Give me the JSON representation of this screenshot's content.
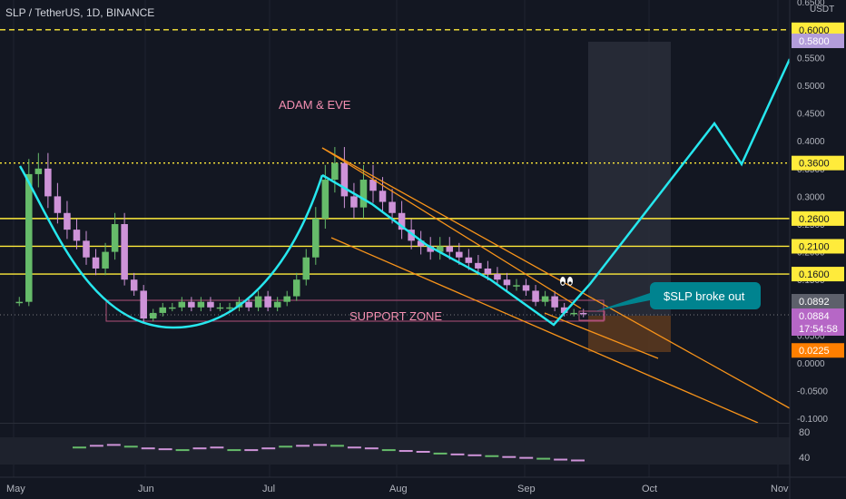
{
  "header": {
    "symbol_line": "SLP / TetherUS, 1D, BINANCE"
  },
  "chart_data": {
    "type": "candlestick",
    "title": "SLP / TetherUS, 1D, BINANCE",
    "currency_label": "USDT",
    "price_axis_ticks": [
      "0.6500",
      "0.5500",
      "0.5000",
      "0.4500",
      "0.4000",
      "0.3500",
      "0.3000",
      "0.2500",
      "0.2000",
      "0.1500",
      "0.1000",
      "0.0500",
      "0.0000",
      "-0.0500",
      "-0.1000"
    ],
    "price_axis_values": [
      0.65,
      0.55,
      0.5,
      0.45,
      0.4,
      0.35,
      0.3,
      0.25,
      0.2,
      0.15,
      0.1,
      0.05,
      0.0,
      -0.05,
      -0.1
    ],
    "time_axis_ticks": [
      "May",
      "Jun",
      "Jul",
      "Aug",
      "Sep",
      "Oct",
      "Nov"
    ],
    "ylim": [
      -0.1,
      0.65
    ],
    "horizontal_levels": [
      {
        "label": "0.6000",
        "value": 0.6,
        "style": "dashed",
        "color": "#ffeb3b"
      },
      {
        "label": "0.3600",
        "value": 0.36,
        "style": "dotted",
        "color": "#ffeb3b"
      },
      {
        "label": "0.2600",
        "value": 0.26,
        "style": "solid",
        "color": "#ffeb3b"
      },
      {
        "label": "0.2100",
        "value": 0.21,
        "style": "solid",
        "color": "#ffeb3b"
      },
      {
        "label": "0.1600",
        "value": 0.16,
        "style": "solid",
        "color": "#ffeb3b"
      }
    ],
    "price_tags": [
      {
        "label": "0.5800",
        "value": 0.58,
        "color": "#b39ddb"
      },
      {
        "label": "0.0892",
        "value": 0.0892,
        "color": "#5d606b"
      },
      {
        "label": "0.0884",
        "value": 0.0884,
        "color": "#b667c6"
      },
      {
        "label": "17:54:58",
        "value": 0.07,
        "color": "#b667c6"
      },
      {
        "label": "0.0225",
        "value": 0.0225,
        "color": "#ff7f00"
      }
    ],
    "annotations": [
      {
        "text": "ADAM & EVE",
        "color": "#f48fb1"
      },
      {
        "text": "SUPPORT ZONE",
        "color": "#f48fb1"
      },
      {
        "text": "$SLP broke out",
        "color": "#ffffff",
        "background": "#00838f"
      }
    ],
    "volume_panel_ticks": [
      "80",
      "40"
    ],
    "candles": [
      {
        "close": 0.11
      },
      {
        "close": 0.34
      },
      {
        "close": 0.35
      },
      {
        "close": 0.3
      },
      {
        "close": 0.27
      },
      {
        "close": 0.24
      },
      {
        "close": 0.22
      },
      {
        "close": 0.19
      },
      {
        "close": 0.17
      },
      {
        "close": 0.2
      },
      {
        "close": 0.25
      },
      {
        "close": 0.15
      },
      {
        "close": 0.13
      },
      {
        "close": 0.08
      },
      {
        "close": 0.09
      },
      {
        "close": 0.1
      },
      {
        "close": 0.1
      },
      {
        "close": 0.11
      },
      {
        "close": 0.1
      },
      {
        "close": 0.11
      },
      {
        "close": 0.1
      },
      {
        "close": 0.1
      },
      {
        "close": 0.1
      },
      {
        "close": 0.11
      },
      {
        "close": 0.1
      },
      {
        "close": 0.12
      },
      {
        "close": 0.1
      },
      {
        "close": 0.11
      },
      {
        "close": 0.12
      },
      {
        "close": 0.15
      },
      {
        "close": 0.19
      },
      {
        "close": 0.26
      },
      {
        "close": 0.33
      },
      {
        "close": 0.36
      },
      {
        "close": 0.3
      },
      {
        "close": 0.28
      },
      {
        "close": 0.33
      },
      {
        "close": 0.31
      },
      {
        "close": 0.29
      },
      {
        "close": 0.27
      },
      {
        "close": 0.24
      },
      {
        "close": 0.22
      },
      {
        "close": 0.21
      },
      {
        "close": 0.2
      },
      {
        "close": 0.21
      },
      {
        "close": 0.2
      },
      {
        "close": 0.19
      },
      {
        "close": 0.18
      },
      {
        "close": 0.17
      },
      {
        "close": 0.16
      },
      {
        "close": 0.15
      },
      {
        "close": 0.14
      },
      {
        "close": 0.14
      },
      {
        "close": 0.13
      },
      {
        "close": 0.11
      },
      {
        "close": 0.12
      },
      {
        "close": 0.1
      },
      {
        "close": 0.09
      },
      {
        "close": 0.09
      },
      {
        "close": 0.0884
      }
    ],
    "volume_values": [
      45,
      47,
      48,
      46,
      44,
      43,
      42,
      44,
      45,
      42,
      42,
      44,
      46,
      47,
      48,
      47,
      45,
      44,
      42,
      41,
      40,
      38,
      37,
      36,
      35,
      34,
      33,
      32,
      31,
      30
    ]
  },
  "colors": {
    "up": "#26a69a",
    "down": "#ef5350",
    "purple": "#ce93d8",
    "green": "#66bb6a",
    "cyan": "#26e7ee",
    "orange": "#f7931a",
    "yellow": "#ffeb3b"
  }
}
